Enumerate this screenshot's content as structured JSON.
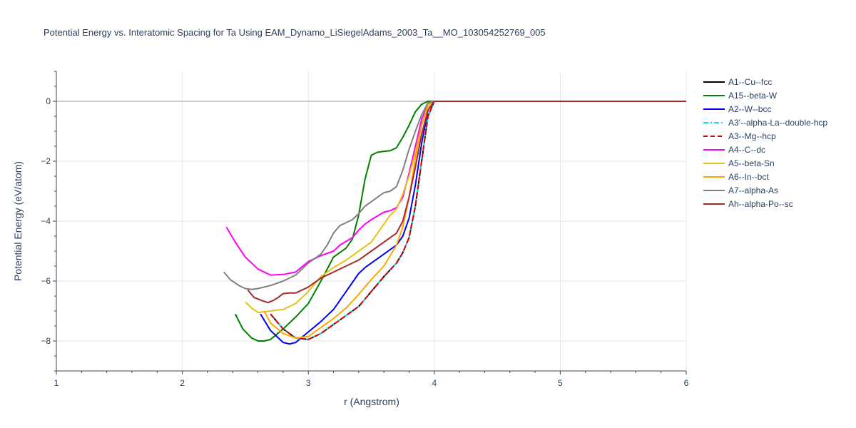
{
  "chart_data": {
    "type": "line",
    "title": "Potential Energy vs. Interatomic Spacing for Ta Using EAM_Dynamo_LiSiegelAdams_2003_Ta__MO_103054252769_005",
    "xlabel": "r (Angstrom)",
    "ylabel": "Potential Energy (eV/atom)",
    "xlim": [
      1,
      6
    ],
    "ylim": [
      -9,
      1
    ],
    "x_ticks": [
      1,
      2,
      3,
      4,
      5,
      6
    ],
    "y_ticks": [
      0,
      -2,
      -4,
      -6,
      -8
    ],
    "x_tick_labels": [
      "1",
      "2",
      "3",
      "4",
      "5",
      "6"
    ],
    "y_tick_labels": [
      "0",
      "−2",
      "−4",
      "−6",
      "−8"
    ],
    "grid": true,
    "legend_position": "right",
    "series": [
      {
        "name": "A1--Cu--fcc",
        "color": "#000000",
        "dash": "solid",
        "x": [
          2.7,
          2.8,
          2.9,
          3.0,
          3.1,
          3.2,
          3.3,
          3.4,
          3.5,
          3.6,
          3.7,
          3.75,
          3.8,
          3.85,
          3.9,
          3.95,
          4.0,
          4.5,
          5.0,
          5.5,
          6.0
        ],
        "y": [
          -7.1,
          -7.6,
          -7.9,
          -7.95,
          -7.75,
          -7.45,
          -7.15,
          -6.85,
          -6.35,
          -5.85,
          -5.4,
          -5.05,
          -4.55,
          -3.5,
          -2.0,
          -0.5,
          0,
          0,
          0,
          0,
          0
        ]
      },
      {
        "name": "A15--beta-W",
        "color": "#008000",
        "dash": "solid",
        "x": [
          2.42,
          2.48,
          2.55,
          2.6,
          2.65,
          2.7,
          2.8,
          2.9,
          3.0,
          3.1,
          3.2,
          3.3,
          3.35,
          3.4,
          3.45,
          3.5,
          3.55,
          3.6,
          3.65,
          3.7,
          3.75,
          3.8,
          3.85,
          3.9,
          3.95,
          4.0,
          4.5,
          5.0,
          5.5,
          6.0
        ],
        "y": [
          -7.1,
          -7.6,
          -7.9,
          -8.0,
          -8.0,
          -7.95,
          -7.6,
          -7.2,
          -6.75,
          -6.0,
          -5.2,
          -4.9,
          -4.6,
          -3.8,
          -2.6,
          -1.8,
          -1.7,
          -1.67,
          -1.65,
          -1.55,
          -1.2,
          -0.8,
          -0.35,
          -0.1,
          0,
          0,
          0,
          0,
          0,
          0
        ]
      },
      {
        "name": "A2--W--bcc",
        "color": "#0000ff",
        "dash": "solid",
        "x": [
          2.62,
          2.7,
          2.8,
          2.85,
          2.9,
          3.0,
          3.1,
          3.2,
          3.3,
          3.4,
          3.45,
          3.5,
          3.6,
          3.7,
          3.75,
          3.8,
          3.85,
          3.9,
          3.95,
          4.0,
          4.5,
          5.0,
          5.5,
          6.0
        ],
        "y": [
          -7.1,
          -7.65,
          -8.05,
          -8.1,
          -8.05,
          -7.7,
          -7.35,
          -6.95,
          -6.35,
          -5.75,
          -5.55,
          -5.4,
          -5.1,
          -4.8,
          -4.5,
          -3.9,
          -2.8,
          -1.4,
          -0.3,
          0,
          0,
          0,
          0,
          0
        ]
      },
      {
        "name": "A3'--alpha-La--double-hcp",
        "color": "#00e5ee",
        "dash": "dashdot",
        "x": [
          2.7,
          2.8,
          2.9,
          3.0,
          3.1,
          3.2,
          3.3,
          3.4,
          3.5,
          3.6,
          3.7,
          3.75,
          3.8,
          3.85,
          3.9,
          3.95,
          4.0,
          4.5,
          5.0,
          5.5,
          6.0
        ],
        "y": [
          -7.1,
          -7.6,
          -7.9,
          -7.95,
          -7.75,
          -7.45,
          -7.15,
          -6.85,
          -6.35,
          -5.85,
          -5.4,
          -5.05,
          -4.55,
          -3.5,
          -2.0,
          -0.5,
          0,
          0,
          0,
          0,
          0
        ]
      },
      {
        "name": "A3--Mg--hcp",
        "color": "#e00000",
        "dash": "dash",
        "x": [
          2.7,
          2.8,
          2.9,
          3.0,
          3.1,
          3.2,
          3.3,
          3.4,
          3.5,
          3.6,
          3.7,
          3.75,
          3.8,
          3.85,
          3.9,
          3.95,
          4.0,
          4.5,
          5.0,
          5.5,
          6.0
        ],
        "y": [
          -7.1,
          -7.6,
          -7.9,
          -7.95,
          -7.75,
          -7.45,
          -7.15,
          -6.85,
          -6.35,
          -5.85,
          -5.4,
          -5.05,
          -4.55,
          -3.5,
          -2.0,
          -0.5,
          0,
          0,
          0,
          0,
          0
        ]
      },
      {
        "name": "A4--C--dc",
        "color": "#ff00ff",
        "dash": "solid",
        "x": [
          2.35,
          2.42,
          2.5,
          2.6,
          2.7,
          2.8,
          2.9,
          3.0,
          3.1,
          3.2,
          3.25,
          3.35,
          3.4,
          3.45,
          3.5,
          3.6,
          3.65,
          3.7,
          3.75,
          3.8,
          3.85,
          3.9,
          3.95,
          4.0,
          4.5,
          5.0,
          5.5,
          6.0
        ],
        "y": [
          -4.2,
          -4.7,
          -5.2,
          -5.6,
          -5.8,
          -5.78,
          -5.7,
          -5.35,
          -5.15,
          -5.0,
          -4.8,
          -4.55,
          -4.3,
          -4.1,
          -3.95,
          -3.7,
          -3.65,
          -3.55,
          -3.2,
          -2.4,
          -1.5,
          -0.6,
          -0.1,
          0,
          0,
          0,
          0,
          0
        ]
      },
      {
        "name": "A5--beta-Sn",
        "color": "#e6c11a",
        "dash": "solid",
        "x": [
          2.5,
          2.55,
          2.6,
          2.7,
          2.8,
          2.9,
          3.0,
          3.1,
          3.2,
          3.3,
          3.4,
          3.5,
          3.55,
          3.6,
          3.65,
          3.7,
          3.75,
          3.8,
          3.85,
          3.9,
          3.95,
          4.0,
          4.5,
          5.0,
          5.5,
          6.0
        ],
        "y": [
          -6.7,
          -6.9,
          -7.05,
          -7.0,
          -6.95,
          -6.75,
          -6.35,
          -5.85,
          -5.55,
          -5.3,
          -5.0,
          -4.7,
          -4.4,
          -4.1,
          -3.8,
          -3.6,
          -3.1,
          -2.5,
          -1.7,
          -0.8,
          -0.2,
          0,
          0,
          0,
          0,
          0
        ]
      },
      {
        "name": "A6--In--bct",
        "color": "#ffa500",
        "dash": "solid",
        "x": [
          2.65,
          2.7,
          2.8,
          2.9,
          3.0,
          3.1,
          3.2,
          3.3,
          3.4,
          3.5,
          3.6,
          3.7,
          3.75,
          3.8,
          3.85,
          3.9,
          3.95,
          4.0,
          4.5,
          5.0,
          5.5,
          6.0
        ],
        "y": [
          -7.0,
          -7.4,
          -7.75,
          -7.9,
          -7.85,
          -7.55,
          -7.25,
          -6.9,
          -6.45,
          -5.95,
          -5.5,
          -4.8,
          -4.2,
          -3.2,
          -1.9,
          -0.8,
          -0.1,
          0,
          0,
          0,
          0,
          0
        ]
      },
      {
        "name": "A7--alpha-As",
        "color": "#808080",
        "dash": "solid",
        "x": [
          2.33,
          2.38,
          2.45,
          2.5,
          2.55,
          2.6,
          2.7,
          2.8,
          2.9,
          3.0,
          3.1,
          3.15,
          3.2,
          3.25,
          3.3,
          3.35,
          3.4,
          3.45,
          3.5,
          3.55,
          3.6,
          3.65,
          3.7,
          3.75,
          3.8,
          3.85,
          3.9,
          3.95,
          4.0,
          4.5,
          5.0,
          5.5,
          6.0
        ],
        "y": [
          -5.7,
          -5.95,
          -6.15,
          -6.25,
          -6.28,
          -6.25,
          -6.15,
          -6.0,
          -5.8,
          -5.4,
          -5.1,
          -4.8,
          -4.4,
          -4.15,
          -4.05,
          -3.95,
          -3.75,
          -3.5,
          -3.35,
          -3.2,
          -3.05,
          -3.0,
          -2.85,
          -2.3,
          -1.6,
          -1.0,
          -0.45,
          -0.05,
          0,
          0,
          0,
          0,
          0
        ]
      },
      {
        "name": "Ah--alpha-Po--sc",
        "color": "#a52a2a",
        "dash": "solid",
        "x": [
          2.52,
          2.57,
          2.63,
          2.68,
          2.72,
          2.76,
          2.8,
          2.85,
          2.9,
          3.0,
          3.1,
          3.2,
          3.3,
          3.4,
          3.5,
          3.6,
          3.7,
          3.75,
          3.8,
          3.85,
          3.9,
          3.95,
          4.0,
          4.5,
          5.0,
          5.5,
          6.0
        ],
        "y": [
          -6.3,
          -6.55,
          -6.65,
          -6.72,
          -6.65,
          -6.55,
          -6.42,
          -6.4,
          -6.4,
          -6.2,
          -5.9,
          -5.7,
          -5.5,
          -5.3,
          -5.0,
          -4.7,
          -4.4,
          -4.0,
          -3.2,
          -2.2,
          -1.1,
          -0.3,
          0,
          0,
          0,
          0,
          0
        ]
      }
    ]
  }
}
